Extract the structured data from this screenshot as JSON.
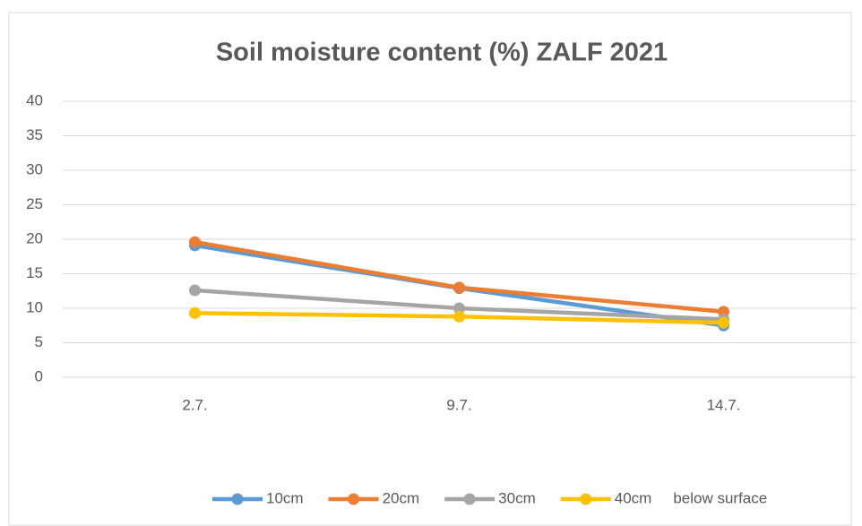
{
  "chart_data": {
    "type": "line",
    "title": "Soil moisture content (%) ZALF 2021",
    "categories": [
      "2.7.",
      "9.7.",
      "14.7."
    ],
    "series": [
      {
        "name": "10cm",
        "color": "#5b9bd5",
        "values": [
          19.1,
          12.9,
          7.5
        ]
      },
      {
        "name": "20cm",
        "color": "#ed7d31",
        "values": [
          19.6,
          13.0,
          9.5
        ]
      },
      {
        "name": "30cm",
        "color": "#a5a5a5",
        "values": [
          12.6,
          10.0,
          8.4
        ]
      },
      {
        "name": "40cm",
        "color": "#ffc000",
        "values": [
          9.3,
          8.8,
          7.9
        ]
      }
    ],
    "legend_note": "below surface",
    "ylim": [
      0,
      40
    ],
    "yticks": [
      0,
      5,
      10,
      15,
      20,
      25,
      30,
      35,
      40
    ],
    "grid": true,
    "legend": "bottom"
  }
}
